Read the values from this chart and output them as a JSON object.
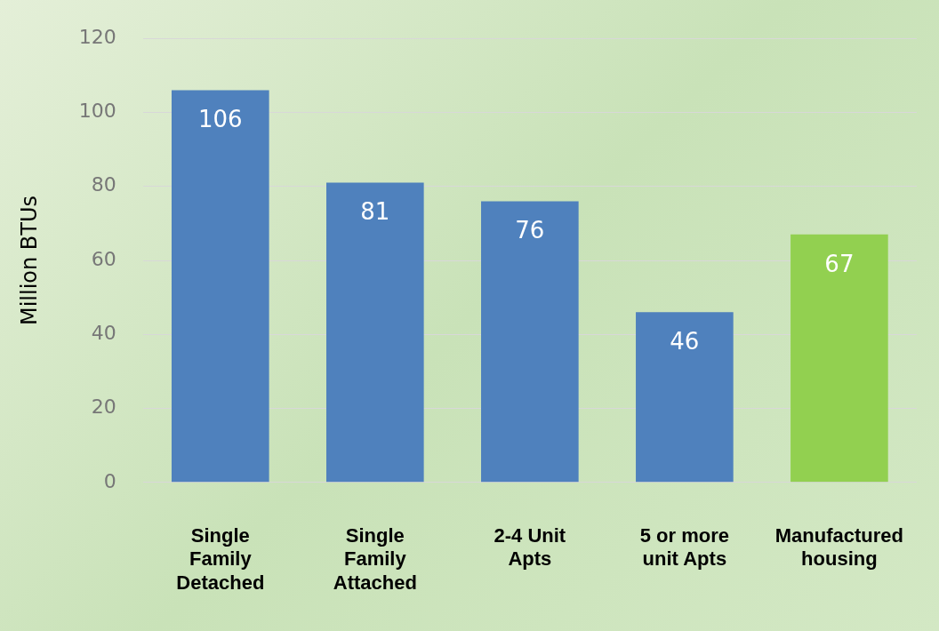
{
  "chart_data": {
    "type": "bar",
    "ylabel": "Million BTUs",
    "categories": [
      "Single Family Detached",
      "Single Family Attached",
      "2-4 Unit Apts",
      "5 or more unit Apts",
      "Manufactured housing"
    ],
    "values": [
      106,
      81,
      76,
      46,
      67
    ],
    "colors": [
      "#4f81bd",
      "#4f81bd",
      "#4f81bd",
      "#4f81bd",
      "#92d050"
    ],
    "ylim": [
      0,
      120
    ],
    "yticks": [
      0,
      20,
      40,
      60,
      80,
      100,
      120
    ],
    "grid": "y",
    "legend": false,
    "data_labels": true
  }
}
